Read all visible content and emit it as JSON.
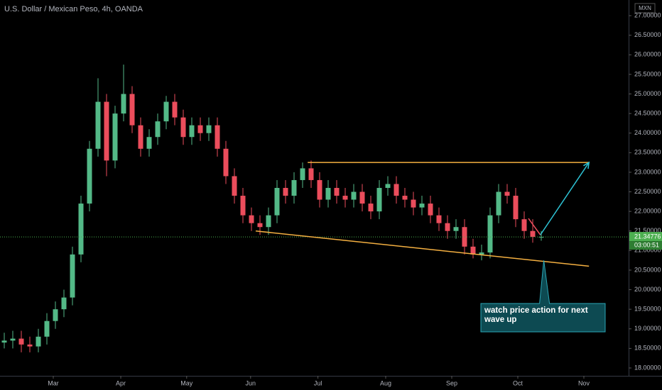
{
  "chart_data": {
    "type": "candlestick",
    "title": "U.S. Dollar / Mexican Peso, 4h, OANDA",
    "y_axis_label": "MXN",
    "categories": [
      null,
      null,
      null,
      null,
      null,
      null,
      null,
      null,
      null,
      null,
      null,
      null,
      null,
      null,
      null,
      null,
      null,
      null,
      null,
      null,
      null,
      null,
      null,
      null,
      null,
      null,
      null,
      null,
      null,
      null,
      null,
      null,
      null,
      null,
      null,
      null,
      null,
      null,
      null,
      null,
      null,
      null,
      null,
      null,
      null,
      null,
      null,
      null,
      null,
      null,
      null,
      null,
      null,
      null,
      null,
      null,
      null,
      null,
      null,
      null,
      null,
      null,
      null,
      null
    ],
    "open": [
      18.65,
      18.7,
      18.75,
      18.6,
      18.55,
      18.8,
      19.2,
      19.5,
      19.8,
      20.9,
      22.2,
      23.6,
      24.8,
      23.3,
      24.5,
      25.0,
      24.2,
      23.6,
      23.9,
      24.3,
      24.8,
      24.4,
      23.9,
      24.2,
      24.0,
      24.2,
      23.6,
      22.9,
      22.4,
      21.9,
      21.7,
      21.6,
      21.9,
      22.6,
      22.4,
      22.8,
      23.1,
      22.8,
      22.3,
      22.6,
      22.4,
      22.3,
      22.5,
      22.2,
      22.0,
      22.6,
      22.7,
      22.4,
      22.3,
      22.1,
      22.2,
      21.9,
      21.7,
      21.5,
      21.6,
      21.1,
      20.9,
      20.95,
      21.9,
      22.5,
      22.4,
      21.8,
      21.5,
      21.35
    ],
    "high": [
      18.9,
      18.95,
      18.95,
      18.8,
      19.0,
      19.4,
      19.7,
      20.0,
      21.1,
      22.4,
      23.8,
      25.4,
      25.0,
      24.7,
      25.75,
      25.2,
      24.4,
      24.1,
      24.5,
      24.95,
      25.0,
      24.6,
      24.4,
      24.4,
      24.4,
      24.4,
      23.8,
      23.1,
      22.6,
      22.1,
      21.9,
      22.1,
      22.8,
      22.8,
      23.0,
      23.25,
      23.3,
      23.0,
      22.8,
      22.8,
      22.6,
      22.7,
      22.7,
      22.4,
      22.8,
      22.9,
      22.9,
      22.6,
      22.5,
      22.4,
      22.4,
      22.1,
      21.9,
      21.8,
      21.8,
      21.3,
      21.15,
      22.1,
      22.7,
      22.7,
      22.6,
      22.0,
      21.8,
      21.5
    ],
    "low": [
      18.5,
      18.5,
      18.4,
      18.4,
      18.4,
      18.6,
      19.0,
      19.3,
      19.6,
      20.7,
      22.0,
      23.4,
      22.9,
      23.1,
      24.3,
      24.0,
      23.4,
      23.4,
      23.7,
      24.1,
      24.2,
      23.7,
      23.7,
      23.8,
      23.8,
      23.4,
      22.7,
      22.2,
      21.7,
      21.5,
      21.4,
      21.4,
      21.7,
      22.2,
      22.2,
      22.6,
      22.6,
      22.1,
      22.1,
      22.2,
      22.1,
      22.1,
      22.0,
      21.8,
      21.8,
      22.4,
      22.2,
      22.1,
      21.9,
      21.9,
      21.7,
      21.5,
      21.3,
      21.3,
      20.9,
      20.8,
      20.75,
      20.8,
      21.7,
      22.2,
      21.6,
      21.3,
      21.2,
      21.25
    ],
    "close": [
      18.7,
      18.75,
      18.6,
      18.55,
      18.8,
      19.2,
      19.5,
      19.8,
      20.9,
      22.2,
      23.6,
      24.8,
      23.3,
      24.5,
      25.0,
      24.2,
      23.6,
      23.9,
      24.3,
      24.8,
      24.4,
      23.9,
      24.2,
      24.0,
      24.2,
      23.6,
      22.9,
      22.4,
      21.9,
      21.7,
      21.6,
      21.9,
      22.6,
      22.4,
      22.8,
      23.1,
      22.8,
      22.3,
      22.6,
      22.4,
      22.3,
      22.5,
      22.2,
      22.0,
      22.6,
      22.7,
      22.4,
      22.3,
      22.1,
      22.2,
      21.9,
      21.7,
      21.5,
      21.6,
      21.1,
      20.9,
      20.95,
      21.9,
      22.5,
      22.4,
      21.8,
      21.5,
      21.35,
      21.35
    ],
    "up_color": "#53b987",
    "down_color": "#eb4d5c",
    "ylim": [
      17.8,
      27.4
    ],
    "yticks": [
      {
        "value": 18.0,
        "label": "18.00000"
      },
      {
        "value": 18.5,
        "label": "18.50000"
      },
      {
        "value": 19.0,
        "label": "19.00000"
      },
      {
        "value": 19.5,
        "label": "19.50000"
      },
      {
        "value": 20.0,
        "label": "20.00000"
      },
      {
        "value": 20.5,
        "label": "20.50000"
      },
      {
        "value": 21.0,
        "label": "21.00000"
      },
      {
        "value": 21.5,
        "label": "21.50000"
      },
      {
        "value": 22.0,
        "label": "22.00000"
      },
      {
        "value": 22.5,
        "label": "22.50000"
      },
      {
        "value": 23.0,
        "label": "23.00000"
      },
      {
        "value": 23.5,
        "label": "23.50000"
      },
      {
        "value": 24.0,
        "label": "24.00000"
      },
      {
        "value": 24.5,
        "label": "24.50000"
      },
      {
        "value": 25.0,
        "label": "25.00000"
      },
      {
        "value": 25.5,
        "label": "25.50000"
      },
      {
        "value": 26.0,
        "label": "26.00000"
      },
      {
        "value": 26.5,
        "label": "26.50000"
      },
      {
        "value": 27.0,
        "label": "27.00000"
      }
    ],
    "xticks": [
      {
        "value": 5.75,
        "label": "Mar"
      },
      {
        "value": 13.67,
        "label": "Apr"
      },
      {
        "value": 21.4,
        "label": "May"
      },
      {
        "value": 28.9,
        "label": "Jun"
      },
      {
        "value": 36.8,
        "label": "Jul"
      },
      {
        "value": 44.75,
        "label": "Aug"
      },
      {
        "value": 52.5,
        "label": "Sep"
      },
      {
        "value": 60.25,
        "label": "Oct"
      },
      {
        "value": 68.0,
        "label": "Nov"
      }
    ],
    "grid": false,
    "last_price": 21.34776,
    "last_price_label": "21.34776",
    "countdown": "03:00:51",
    "price_line_color": "#4caf50",
    "trend_lines": [
      {
        "x": [
          35.6,
          68.6
        ],
        "y": [
          23.25,
          23.25
        ],
        "color": "#f5b041"
      },
      {
        "x": [
          29.5,
          68.6
        ],
        "y": [
          21.5,
          20.6
        ],
        "color": "#f5b041"
      },
      {
        "x": [
          61.5,
          62.9
        ],
        "y": [
          21.82,
          21.4
        ],
        "color": "#eb4d5c"
      }
    ],
    "arrow": {
      "x": [
        62.9,
        68.6
      ],
      "y": [
        21.4,
        23.25
      ],
      "color": "#2ec4d6"
    },
    "annotation": {
      "text": "watch price action for next wave up",
      "x": 63.3,
      "y": 20.75
    }
  }
}
